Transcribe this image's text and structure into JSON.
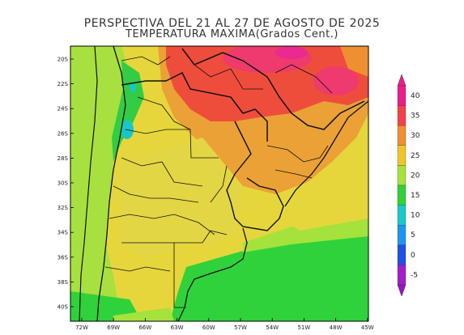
{
  "title_line1": "PERSPECTIVA DEL 21 AL 27 DE AGOSTO DE 2025",
  "title_line2": "TEMPERATURA MAXIMA(Grados Cent.)",
  "lat_labels": [
    "20S",
    "22S",
    "24S",
    "26S",
    "28S",
    "30S",
    "32S",
    "34S",
    "36S",
    "38S",
    "40S"
  ],
  "lon_labels": [
    "72W",
    "69W",
    "66W",
    "63W",
    "60W",
    "57W",
    "54W",
    "51W",
    "48W",
    "45W"
  ],
  "colorbar": {
    "labels": [
      "40",
      "35",
      "30",
      "25",
      "20",
      "15",
      "10",
      "5",
      "0",
      "-5"
    ],
    "colors": [
      "#ec1d8c",
      "#f2424a",
      "#f08f32",
      "#eec62a",
      "#a5e23b",
      "#2fd23a",
      "#19c8c8",
      "#1e96f0",
      "#2050e6",
      "#a020c8"
    ]
  }
}
